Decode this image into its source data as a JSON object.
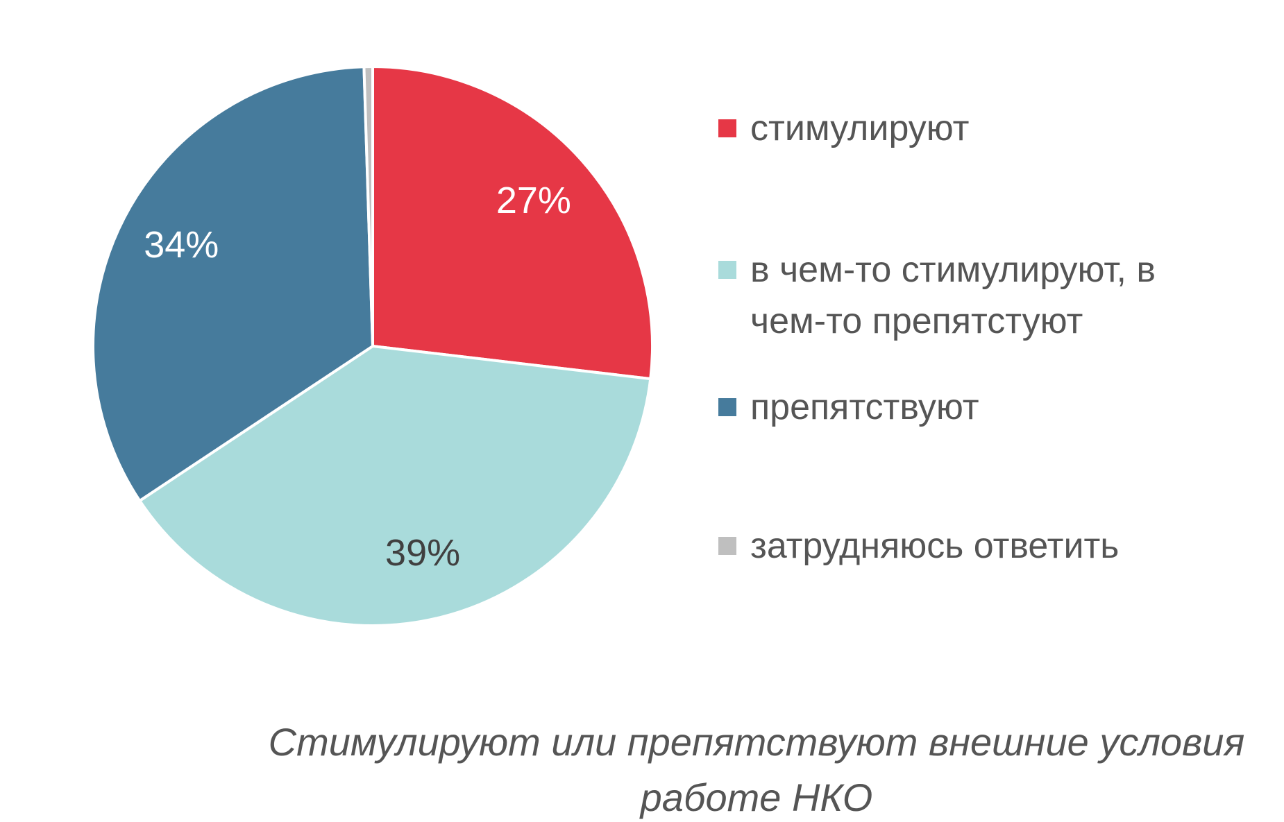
{
  "chart_data": {
    "type": "pie",
    "title": "Стимулируют или препятствуют внешние условия работе НКО",
    "categories": [
      "стимулируют",
      "в чем-то стимулируют, в чем-то препятстуют",
      "препятствуют",
      "затрудняюсь ответить"
    ],
    "values": [
      27,
      39,
      34,
      0.5
    ],
    "value_labels": [
      "27%",
      "39%",
      "34%",
      null
    ],
    "colors": [
      "#e63746",
      "#a9dbdb",
      "#467b9c",
      "#bfbfbf"
    ],
    "label_colors": [
      "#ffffff",
      "#404040",
      "#ffffff",
      "#404040"
    ],
    "legend": "right"
  }
}
